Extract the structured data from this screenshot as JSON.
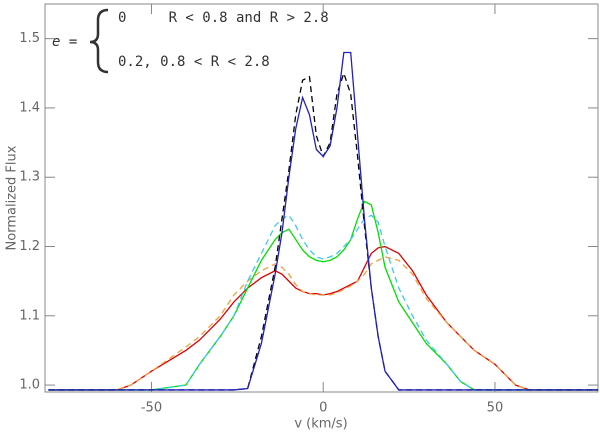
{
  "chart_data": {
    "type": "line",
    "xlabel": "v (km/s)",
    "ylabel": "Normalized Flux",
    "annotation": {
      "lhs": "e =",
      "lines": [
        "0     R < 0.8 and R > 2.8",
        "0.2, 0.8 < R < 2.8"
      ]
    },
    "xlim": [
      -81,
      80
    ],
    "ylim": [
      0.99,
      1.55
    ],
    "xticks": [
      -50,
      0,
      50
    ],
    "yticks": [
      {
        "value": 1.0,
        "label": "1.0"
      },
      1.1,
      1.2,
      1.3,
      1.4,
      {
        "value": 1.5,
        "label": "1.5"
      }
    ],
    "x": [
      -80,
      -60,
      -56,
      -50,
      -40,
      -36,
      -30,
      -26,
      -22,
      -18,
      -14,
      -12,
      -10,
      -8,
      -6,
      -4,
      -2,
      0,
      2,
      4,
      6,
      8,
      10,
      12,
      14,
      16,
      18,
      22,
      26,
      30,
      36,
      40,
      44,
      50,
      56,
      60,
      80
    ],
    "series": [
      {
        "color": "#e00000",
        "dash": false,
        "values": [
          0.993,
          0.993,
          1.0,
          1.02,
          1.05,
          1.065,
          1.095,
          1.12,
          1.14,
          1.155,
          1.165,
          1.16,
          1.15,
          1.14,
          1.135,
          1.132,
          1.132,
          1.13,
          1.132,
          1.135,
          1.14,
          1.145,
          1.15,
          1.17,
          1.19,
          1.198,
          1.2,
          1.19,
          1.165,
          1.13,
          1.09,
          1.07,
          1.05,
          1.03,
          1.0,
          0.993,
          0.993
        ]
      },
      {
        "color": "#f0a040",
        "dash": true,
        "values": [
          0.993,
          0.993,
          1.0,
          1.02,
          1.055,
          1.07,
          1.1,
          1.13,
          1.15,
          1.165,
          1.175,
          1.17,
          1.16,
          1.145,
          1.135,
          1.132,
          1.13,
          1.13,
          1.13,
          1.133,
          1.138,
          1.143,
          1.15,
          1.16,
          1.175,
          1.18,
          1.185,
          1.18,
          1.16,
          1.125,
          1.09,
          1.07,
          1.05,
          1.03,
          1.0,
          0.993,
          0.993
        ]
      },
      {
        "color": "#00e000",
        "dash": false,
        "values": [
          0.993,
          0.993,
          0.993,
          0.993,
          1.0,
          1.03,
          1.07,
          1.1,
          1.14,
          1.18,
          1.21,
          1.22,
          1.225,
          1.21,
          1.195,
          1.185,
          1.18,
          1.178,
          1.18,
          1.185,
          1.195,
          1.21,
          1.24,
          1.265,
          1.26,
          1.22,
          1.17,
          1.12,
          1.09,
          1.06,
          1.03,
          1.005,
          0.993,
          0.993,
          0.993,
          0.993,
          0.993
        ]
      },
      {
        "color": "#40c8f0",
        "dash": true,
        "values": [
          0.993,
          0.993,
          0.993,
          0.993,
          1.0,
          1.03,
          1.07,
          1.1,
          1.15,
          1.19,
          1.23,
          1.24,
          1.245,
          1.23,
          1.21,
          1.195,
          1.185,
          1.182,
          1.185,
          1.19,
          1.2,
          1.21,
          1.225,
          1.24,
          1.245,
          1.235,
          1.2,
          1.14,
          1.1,
          1.065,
          1.03,
          1.005,
          0.993,
          0.993,
          0.993,
          0.993,
          0.993
        ]
      },
      {
        "color": "#000000",
        "dash": true,
        "values": [
          0.993,
          0.993,
          0.993,
          0.993,
          0.993,
          0.993,
          0.993,
          0.993,
          0.995,
          1.07,
          1.17,
          1.24,
          1.31,
          1.39,
          1.44,
          1.445,
          1.36,
          1.33,
          1.35,
          1.42,
          1.45,
          1.42,
          1.33,
          1.23,
          1.14,
          1.07,
          1.02,
          0.993,
          0.993,
          0.993,
          0.993,
          0.993,
          0.993,
          0.993,
          0.993,
          0.993,
          0.993
        ]
      },
      {
        "color": "#2020c0",
        "dash": false,
        "values": [
          0.993,
          0.993,
          0.993,
          0.993,
          0.993,
          0.993,
          0.993,
          0.993,
          0.995,
          1.06,
          1.16,
          1.22,
          1.3,
          1.37,
          1.415,
          1.39,
          1.34,
          1.33,
          1.345,
          1.4,
          1.48,
          1.48,
          1.36,
          1.24,
          1.14,
          1.07,
          1.02,
          0.993,
          0.993,
          0.993,
          0.993,
          0.993,
          0.993,
          0.993,
          0.993,
          0.993,
          0.993
        ]
      }
    ]
  }
}
